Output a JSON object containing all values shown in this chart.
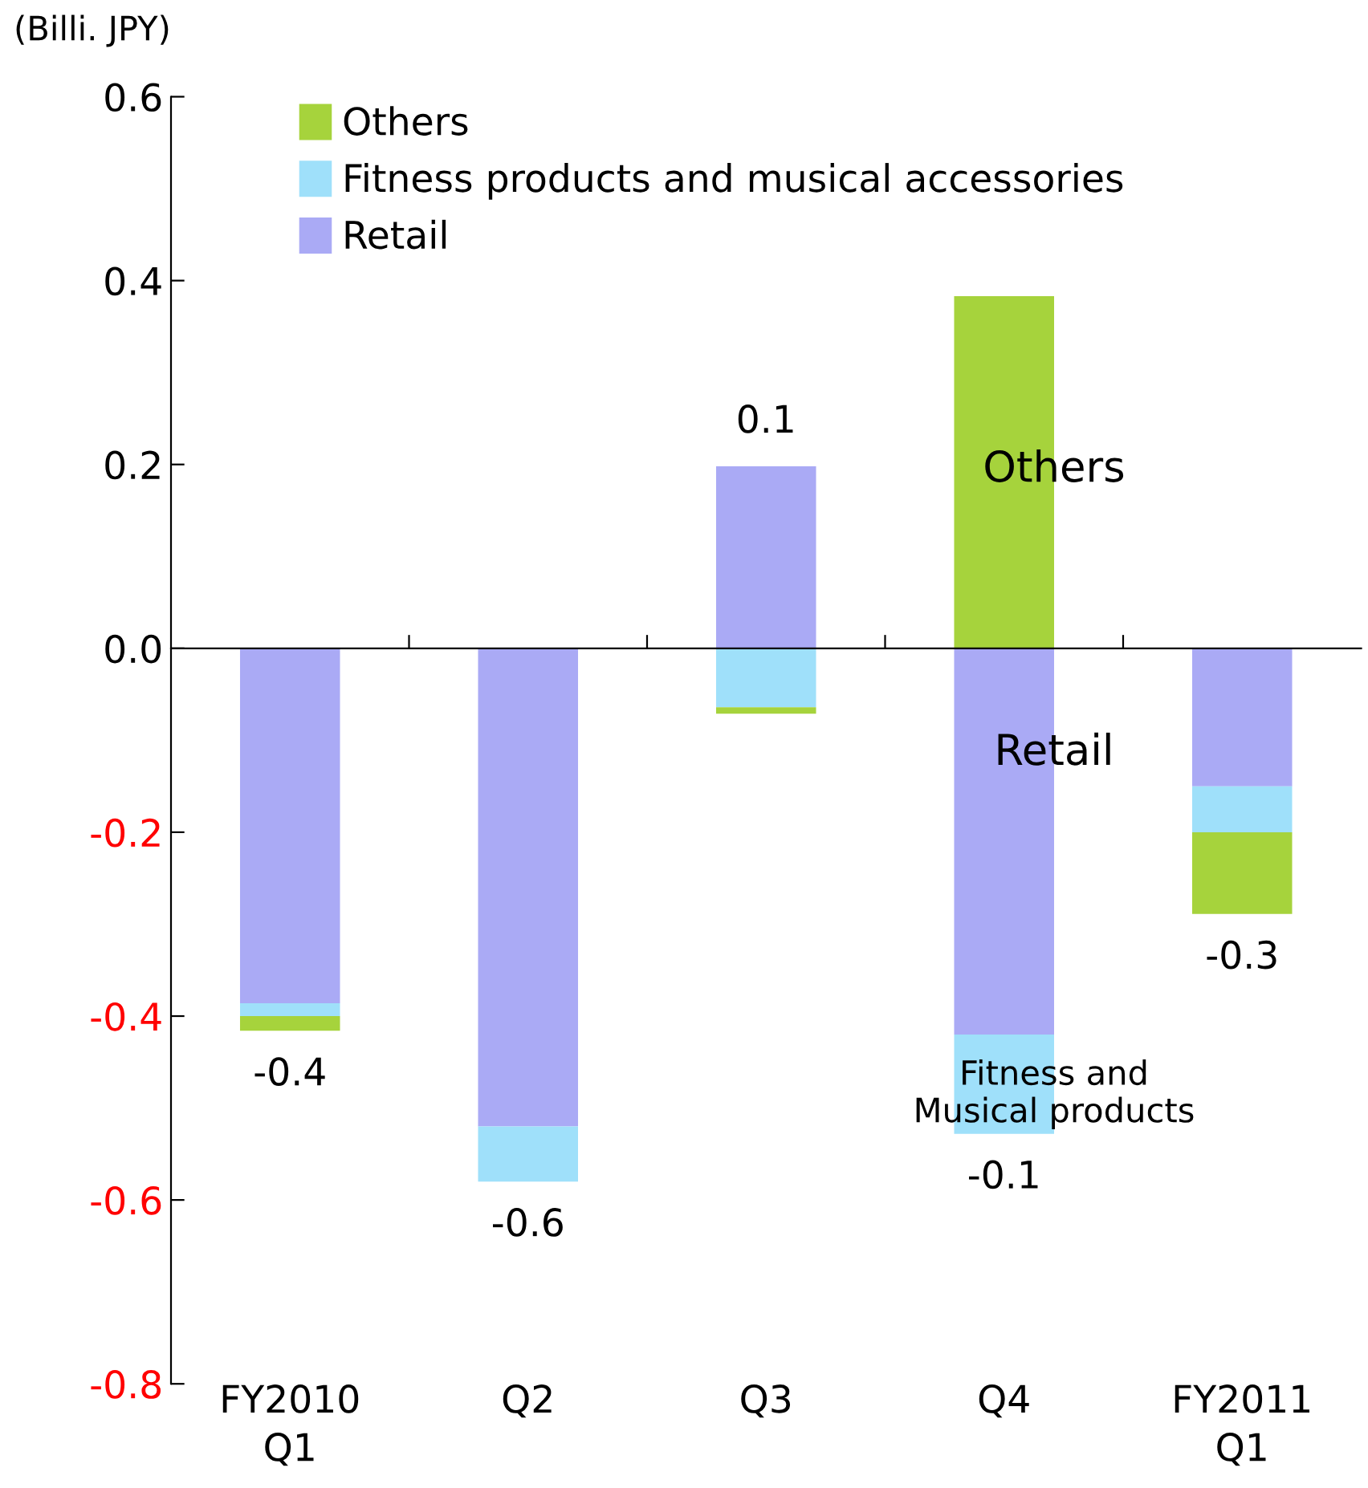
{
  "chart_data": {
    "type": "bar",
    "stacked": true,
    "ylabel": "(Billi. JPY)",
    "categories": [
      "FY2010\nQ1",
      "Q2",
      "Q3",
      "Q4",
      "FY2011\nQ1"
    ],
    "series": [
      {
        "name": "Retail",
        "color": "#aaaaf5",
        "values": [
          -0.386,
          -0.52,
          0.198,
          -0.42,
          -0.15
        ]
      },
      {
        "name": "Fitness products and musical accessories",
        "color": "#9fe0fa",
        "values": [
          -0.014,
          -0.06,
          -0.064,
          -0.108,
          -0.05
        ]
      },
      {
        "name": "Others",
        "color": "#a6d33c",
        "values": [
          -0.016,
          0,
          -0.007,
          0.383,
          -0.089
        ]
      }
    ],
    "totals": [
      "-0.4",
      "-0.6",
      "0.1",
      "-0.1",
      "-0.3"
    ],
    "ylim": [
      -0.8,
      0.6
    ],
    "yticks": [
      {
        "value": -0.8,
        "label": "-0.8"
      },
      {
        "value": -0.6,
        "label": "-0.6"
      },
      {
        "value": -0.4,
        "label": "-0.4"
      },
      {
        "value": -0.2,
        "label": "-0.2"
      },
      {
        "value": 0,
        "label": "0.0"
      },
      0.2,
      0.4,
      0.6
    ],
    "annotations": [
      "Others",
      "Retail",
      "Fitness and\nMusical products"
    ],
    "legend": "top left"
  }
}
